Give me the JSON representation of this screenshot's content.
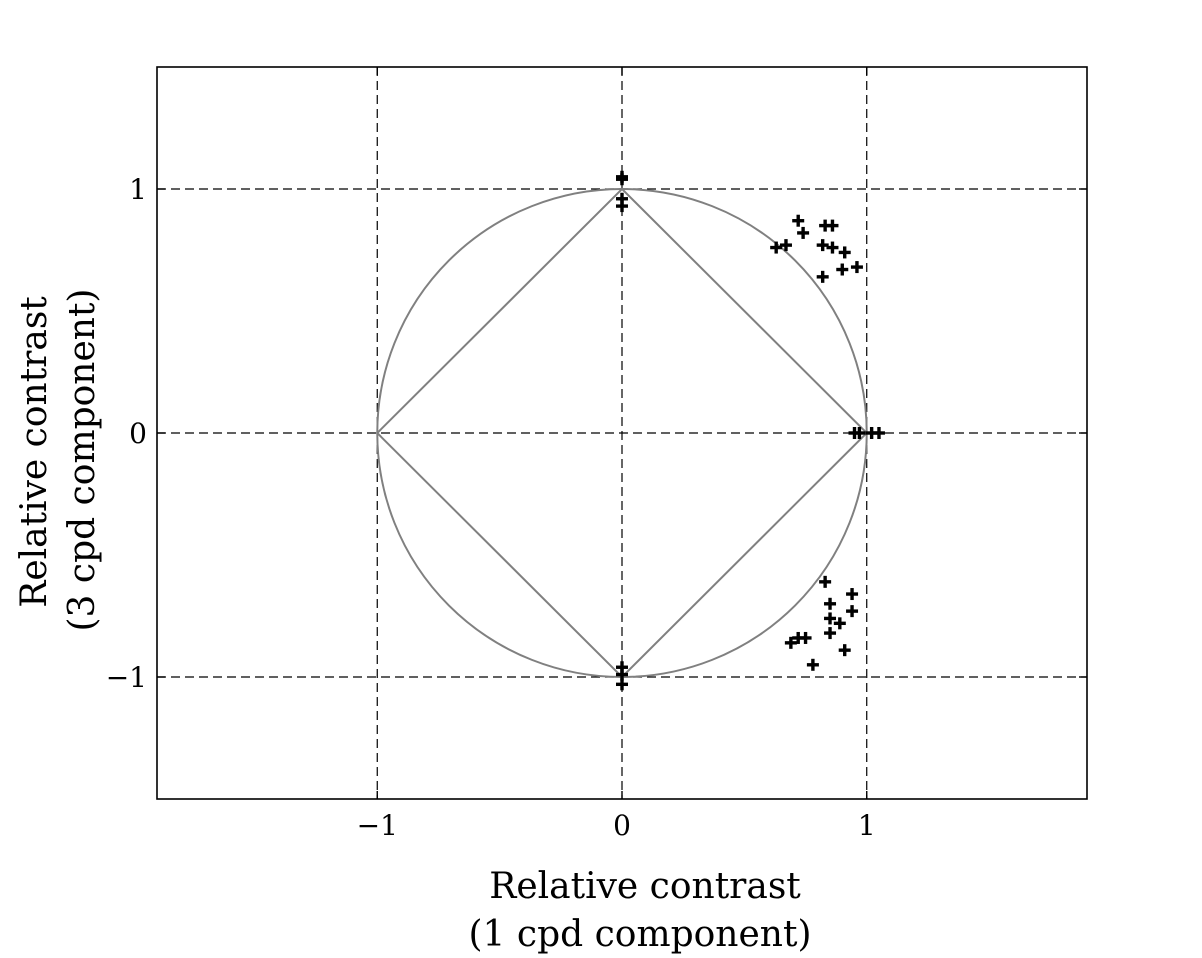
{
  "chart_data": {
    "type": "scatter",
    "title": "",
    "xlabel": [
      "Relative contrast",
      "(1 cpd component)"
    ],
    "ylabel": [
      "Relative contrast",
      "(3 cpd component)"
    ],
    "xlim": [
      -1.9,
      1.9
    ],
    "ylim": [
      -1.5,
      1.5
    ],
    "x_ticks": [
      {
        "value": -1,
        "label": "−1"
      },
      {
        "value": 0,
        "label": "0"
      },
      {
        "value": 1,
        "label": "1"
      }
    ],
    "y_ticks": [
      {
        "value": 1,
        "label": "1"
      },
      {
        "value": 0,
        "label": "0"
      },
      {
        "value": -1,
        "label": "−1"
      }
    ],
    "grid": true,
    "grid_style": "dashed",
    "reference_shapes": [
      "unit-circle",
      "unit-diamond"
    ],
    "reference_color": "#808080",
    "marker": "plus",
    "marker_color": "#000000",
    "series": [
      {
        "points": [
          [
            0.0,
            1.05
          ],
          [
            0.0,
            1.04
          ],
          [
            0.0,
            0.96
          ],
          [
            0.0,
            0.93
          ],
          [
            0.0,
            -0.96
          ],
          [
            0.0,
            -0.99
          ],
          [
            0.0,
            -1.03
          ],
          [
            0.95,
            0.0
          ],
          [
            0.97,
            0.0
          ],
          [
            1.02,
            0.0
          ],
          [
            1.05,
            0.0
          ],
          [
            0.72,
            0.87
          ],
          [
            0.74,
            0.82
          ],
          [
            0.83,
            0.85
          ],
          [
            0.86,
            0.85
          ],
          [
            0.63,
            0.76
          ],
          [
            0.67,
            0.77
          ],
          [
            0.82,
            0.77
          ],
          [
            0.86,
            0.76
          ],
          [
            0.91,
            0.74
          ],
          [
            0.96,
            0.68
          ],
          [
            0.9,
            0.67
          ],
          [
            0.82,
            0.64
          ],
          [
            0.83,
            -0.61
          ],
          [
            0.94,
            -0.66
          ],
          [
            0.85,
            -0.7
          ],
          [
            0.94,
            -0.73
          ],
          [
            0.85,
            -0.76
          ],
          [
            0.89,
            -0.78
          ],
          [
            0.85,
            -0.82
          ],
          [
            0.75,
            -0.84
          ],
          [
            0.72,
            -0.84
          ],
          [
            0.69,
            -0.86
          ],
          [
            0.91,
            -0.89
          ],
          [
            0.78,
            -0.95
          ]
        ]
      }
    ]
  }
}
